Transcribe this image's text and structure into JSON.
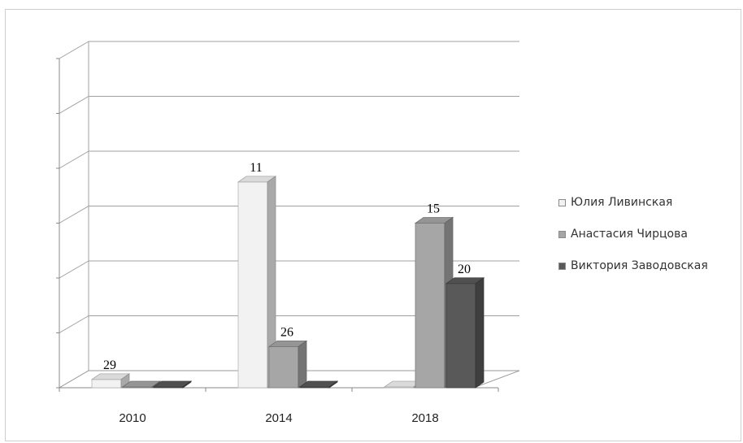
{
  "chart_data": {
    "type": "bar",
    "categories": [
      "2010",
      "2014",
      "2018"
    ],
    "series": [
      {
        "name": "Юлия Ливинская",
        "values": [
          0.15,
          3.75,
          0
        ],
        "labels": [
          "29",
          "11",
          ""
        ],
        "color": "#f2f2f2"
      },
      {
        "name": "Анастасия Чирцова",
        "values": [
          0,
          0.75,
          3.0
        ],
        "labels": [
          "",
          "26",
          "15"
        ],
        "color": "#a6a6a6"
      },
      {
        "name": "Виктория Заводовская",
        "values": [
          0,
          0,
          1.9
        ],
        "labels": [
          "",
          "",
          "20"
        ],
        "color": "#595959"
      }
    ],
    "ylim": [
      0,
      6
    ],
    "grid": true,
    "legend": "right",
    "style": "3d-clustered-column"
  }
}
